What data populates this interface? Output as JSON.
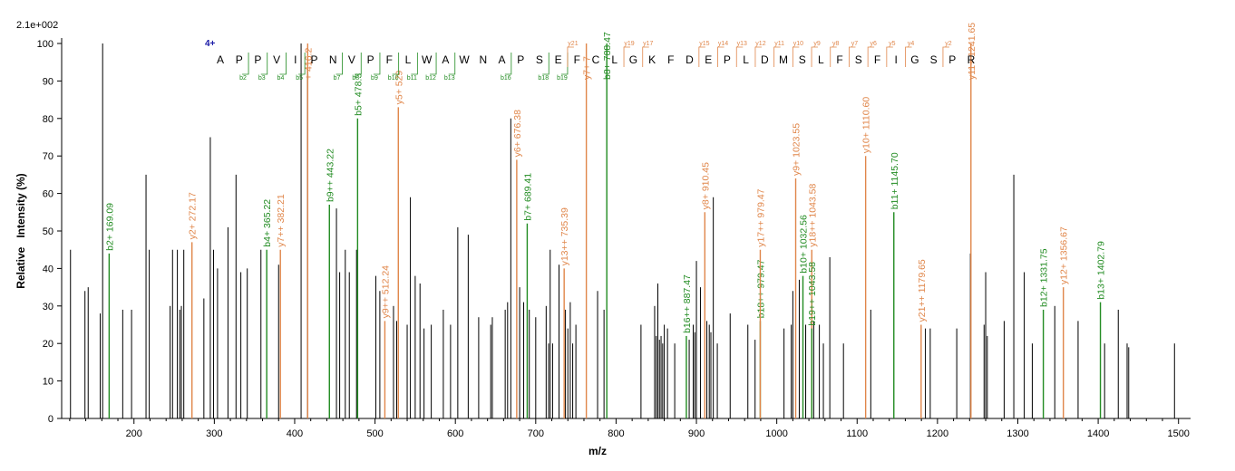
{
  "chart_data": {
    "type": "bar",
    "subtype": "mass-spectrum",
    "scale_label": "2.1e+002",
    "charge_label": "4+",
    "xlabel": "m/z",
    "ylabel": "Relative   Intensity (%)",
    "xlim": [
      110,
      1515
    ],
    "ylim": [
      0,
      100
    ],
    "x_ticks": [
      200,
      300,
      400,
      500,
      600,
      700,
      800,
      900,
      1000,
      1100,
      1200,
      1300,
      1400,
      1500
    ],
    "y_ticks": [
      0,
      10,
      20,
      30,
      40,
      50,
      60,
      70,
      80,
      90,
      100
    ],
    "colors": {
      "b_ion": "#218b21",
      "y_ion": "#e0864a",
      "unassigned": "#000000",
      "charge": "#1a1aa6"
    },
    "sequence": [
      "A",
      "P",
      "P",
      "V",
      "I",
      "P",
      "N",
      "V",
      "P",
      "F",
      "L",
      "W",
      "A",
      "W",
      "N",
      "A",
      "P",
      "S",
      "E",
      "F",
      "C",
      "L",
      "G",
      "K",
      "F",
      "D",
      "E",
      "P",
      "L",
      "D",
      "M",
      "S",
      "L",
      "F",
      "S",
      "F",
      "I",
      "G",
      "S",
      "P",
      "R"
    ],
    "b_markers": [
      "b2",
      "b3",
      "b4",
      "b5",
      "b7",
      "b8",
      "b9",
      "b10",
      "b11",
      "b12",
      "b13",
      "b16",
      "b18",
      "b19"
    ],
    "y_markers": [
      "y21",
      "y19",
      "y17",
      "y15",
      "y14",
      "y13",
      "y12",
      "y11",
      "y10",
      "y9",
      "y8",
      "y7",
      "y6",
      "y5",
      "y4",
      "y2"
    ],
    "peaks": [
      {
        "mz": 121,
        "i": 45
      },
      {
        "mz": 139,
        "i": 34
      },
      {
        "mz": 143,
        "i": 35
      },
      {
        "mz": 158,
        "i": 28
      },
      {
        "mz": 161,
        "i": 100
      },
      {
        "mz": 186,
        "i": 29
      },
      {
        "mz": 197,
        "i": 29
      },
      {
        "mz": 215,
        "i": 65
      },
      {
        "mz": 219,
        "i": 45
      },
      {
        "mz": 245,
        "i": 30
      },
      {
        "mz": 248,
        "i": 45
      },
      {
        "mz": 254,
        "i": 45
      },
      {
        "mz": 257,
        "i": 29
      },
      {
        "mz": 259,
        "i": 30
      },
      {
        "mz": 262,
        "i": 45
      },
      {
        "mz": 287,
        "i": 32
      },
      {
        "mz": 295,
        "i": 75
      },
      {
        "mz": 299,
        "i": 45
      },
      {
        "mz": 304,
        "i": 40
      },
      {
        "mz": 317,
        "i": 51
      },
      {
        "mz": 327,
        "i": 65
      },
      {
        "mz": 333,
        "i": 39
      },
      {
        "mz": 341,
        "i": 40
      },
      {
        "mz": 358,
        "i": 45
      },
      {
        "mz": 380,
        "i": 41
      },
      {
        "mz": 408,
        "i": 100
      },
      {
        "mz": 416,
        "i": 93
      },
      {
        "mz": 452,
        "i": 56
      },
      {
        "mz": 456,
        "i": 39
      },
      {
        "mz": 463,
        "i": 45
      },
      {
        "mz": 468,
        "i": 39
      },
      {
        "mz": 477,
        "i": 45
      },
      {
        "mz": 501,
        "i": 38
      },
      {
        "mz": 506,
        "i": 34
      },
      {
        "mz": 523,
        "i": 30
      },
      {
        "mz": 527,
        "i": 26
      },
      {
        "mz": 540,
        "i": 25
      },
      {
        "mz": 544,
        "i": 59
      },
      {
        "mz": 550,
        "i": 38
      },
      {
        "mz": 556,
        "i": 36
      },
      {
        "mz": 561,
        "i": 24
      },
      {
        "mz": 570,
        "i": 25
      },
      {
        "mz": 585,
        "i": 29
      },
      {
        "mz": 594,
        "i": 25
      },
      {
        "mz": 603,
        "i": 51
      },
      {
        "mz": 616,
        "i": 49
      },
      {
        "mz": 629,
        "i": 27
      },
      {
        "mz": 644,
        "i": 25
      },
      {
        "mz": 646,
        "i": 27
      },
      {
        "mz": 662,
        "i": 29
      },
      {
        "mz": 665,
        "i": 31
      },
      {
        "mz": 669,
        "i": 80
      },
      {
        "mz": 680,
        "i": 35
      },
      {
        "mz": 685,
        "i": 31
      },
      {
        "mz": 692,
        "i": 29
      },
      {
        "mz": 700,
        "i": 27
      },
      {
        "mz": 713,
        "i": 30
      },
      {
        "mz": 716,
        "i": 20
      },
      {
        "mz": 718,
        "i": 45
      },
      {
        "mz": 721,
        "i": 20
      },
      {
        "mz": 729,
        "i": 41
      },
      {
        "mz": 737,
        "i": 29
      },
      {
        "mz": 740,
        "i": 24
      },
      {
        "mz": 743,
        "i": 31
      },
      {
        "mz": 746,
        "i": 20
      },
      {
        "mz": 750,
        "i": 25
      },
      {
        "mz": 777,
        "i": 34
      },
      {
        "mz": 785,
        "i": 29
      },
      {
        "mz": 831,
        "i": 25
      },
      {
        "mz": 848,
        "i": 30
      },
      {
        "mz": 850,
        "i": 22
      },
      {
        "mz": 852,
        "i": 36
      },
      {
        "mz": 854,
        "i": 21
      },
      {
        "mz": 856,
        "i": 22
      },
      {
        "mz": 858,
        "i": 20
      },
      {
        "mz": 860,
        "i": 25
      },
      {
        "mz": 864,
        "i": 24
      },
      {
        "mz": 873,
        "i": 20
      },
      {
        "mz": 891,
        "i": 21
      },
      {
        "mz": 896,
        "i": 25
      },
      {
        "mz": 898,
        "i": 23
      },
      {
        "mz": 900,
        "i": 42
      },
      {
        "mz": 905,
        "i": 35
      },
      {
        "mz": 913,
        "i": 26
      },
      {
        "mz": 916,
        "i": 25
      },
      {
        "mz": 918,
        "i": 23
      },
      {
        "mz": 921,
        "i": 59
      },
      {
        "mz": 926,
        "i": 20
      },
      {
        "mz": 942,
        "i": 28
      },
      {
        "mz": 964,
        "i": 25
      },
      {
        "mz": 973,
        "i": 21
      },
      {
        "mz": 1009,
        "i": 24
      },
      {
        "mz": 1018,
        "i": 25
      },
      {
        "mz": 1020,
        "i": 34
      },
      {
        "mz": 1028,
        "i": 37
      },
      {
        "mz": 1036,
        "i": 25
      },
      {
        "mz": 1046,
        "i": 26
      },
      {
        "mz": 1053,
        "i": 25
      },
      {
        "mz": 1058,
        "i": 20
      },
      {
        "mz": 1066,
        "i": 43
      },
      {
        "mz": 1083,
        "i": 20
      },
      {
        "mz": 1117,
        "i": 29
      },
      {
        "mz": 1185,
        "i": 24
      },
      {
        "mz": 1191,
        "i": 24
      },
      {
        "mz": 1224,
        "i": 24
      },
      {
        "mz": 1241,
        "i": 44
      },
      {
        "mz": 1258,
        "i": 25
      },
      {
        "mz": 1260,
        "i": 39
      },
      {
        "mz": 1262,
        "i": 22
      },
      {
        "mz": 1283,
        "i": 26
      },
      {
        "mz": 1295,
        "i": 65
      },
      {
        "mz": 1308,
        "i": 39
      },
      {
        "mz": 1318,
        "i": 20
      },
      {
        "mz": 1346,
        "i": 30
      },
      {
        "mz": 1375,
        "i": 26
      },
      {
        "mz": 1408,
        "i": 20
      },
      {
        "mz": 1425,
        "i": 29
      },
      {
        "mz": 1436,
        "i": 20
      },
      {
        "mz": 1438,
        "i": 19
      },
      {
        "mz": 1495,
        "i": 20
      }
    ],
    "annotated": [
      {
        "label": "b2+ 169.09",
        "mz": 169.09,
        "i": 44,
        "ion": "b"
      },
      {
        "label": "y2+ 272.17",
        "mz": 272.17,
        "i": 47,
        "ion": "y"
      },
      {
        "label": "b4+ 365.22",
        "mz": 365.22,
        "i": 45,
        "ion": "b"
      },
      {
        "label": "y7++ 382.21",
        "mz": 382.21,
        "i": 45,
        "ion": "y"
      },
      {
        "label": "+ 416.2",
        "mz": 416.2,
        "i": 100,
        "ion": "y"
      },
      {
        "label": "b9++ 443.22",
        "mz": 443.22,
        "i": 57,
        "ion": "b"
      },
      {
        "label": "b5+ 478.3",
        "mz": 478.3,
        "i": 80,
        "ion": "b"
      },
      {
        "label": "y9++ 512.24",
        "mz": 512.24,
        "i": 26,
        "ion": "y"
      },
      {
        "label": "y5+ 529",
        "mz": 529,
        "i": 83,
        "ion": "y"
      },
      {
        "label": "y6+ 676.38",
        "mz": 676.38,
        "i": 69,
        "ion": "y"
      },
      {
        "label": "b7+ 689.41",
        "mz": 689.41,
        "i": 52,
        "ion": "b"
      },
      {
        "label": "y13++ 735.39",
        "mz": 735.39,
        "i": 40,
        "ion": "y"
      },
      {
        "label": "y7+ 7",
        "mz": 763,
        "i": 100,
        "ion": "y"
      },
      {
        "label": "b8+ 788.47",
        "mz": 788.47,
        "i": 100,
        "ion": "b"
      },
      {
        "label": "b16++ 887.47",
        "mz": 887.47,
        "i": 22,
        "ion": "b"
      },
      {
        "label": "y8+ 910.45",
        "mz": 910.45,
        "i": 55,
        "ion": "y"
      },
      {
        "label": "b18++ 979.47",
        "mz": 979.47,
        "i": 26,
        "ion": "b"
      },
      {
        "label": "y17++ 979.47",
        "mz": 979.47,
        "i": 45,
        "ion": "y"
      },
      {
        "label": "y9+ 1023.55",
        "mz": 1023.55,
        "i": 64,
        "ion": "y"
      },
      {
        "label": "b10+ 1032.56",
        "mz": 1032.56,
        "i": 38,
        "ion": "b"
      },
      {
        "label": "y18++ 1043.58",
        "mz": 1043.58,
        "i": 45,
        "ion": "y"
      },
      {
        "label": "b19++ 1043.58",
        "mz": 1043.58,
        "i": 24,
        "ion": "b"
      },
      {
        "label": "y10+ 1110.60",
        "mz": 1110.6,
        "i": 70,
        "ion": "y"
      },
      {
        "label": "b11+ 1145.70",
        "mz": 1145.7,
        "i": 55,
        "ion": "b"
      },
      {
        "label": "y21++ 1179.65",
        "mz": 1179.65,
        "i": 25,
        "ion": "y"
      },
      {
        "label": "y11+ 1241.65",
        "mz": 1241.65,
        "i": 100,
        "ion": "y"
      },
      {
        "label": "b12+ 1331.75",
        "mz": 1331.75,
        "i": 29,
        "ion": "b"
      },
      {
        "label": "y12+ 1356.67",
        "mz": 1356.67,
        "i": 35,
        "ion": "y"
      },
      {
        "label": "b13+ 1402.79",
        "mz": 1402.79,
        "i": 31,
        "ion": "b"
      }
    ]
  }
}
